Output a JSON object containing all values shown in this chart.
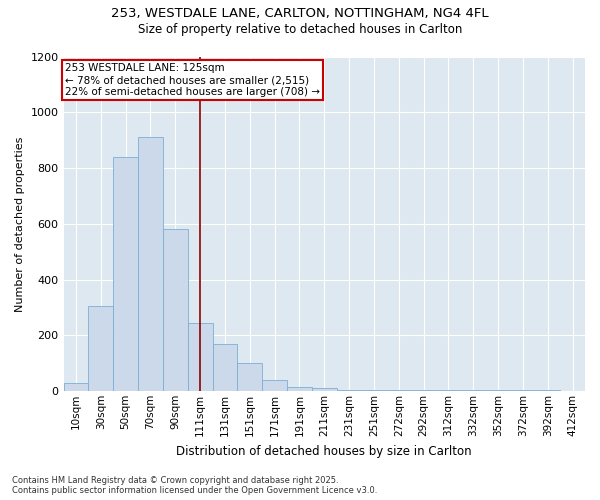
{
  "title_line1": "253, WESTDALE LANE, CARLTON, NOTTINGHAM, NG4 4FL",
  "title_line2": "Size of property relative to detached houses in Carlton",
  "xlabel": "Distribution of detached houses by size in Carlton",
  "ylabel": "Number of detached properties",
  "footer_line1": "Contains HM Land Registry data © Crown copyright and database right 2025.",
  "footer_line2": "Contains public sector information licensed under the Open Government Licence v3.0.",
  "annotation_line1": "253 WESTDALE LANE: 125sqm",
  "annotation_line2": "← 78% of detached houses are smaller (2,515)",
  "annotation_line3": "22% of semi-detached houses are larger (708) →",
  "bin_labels": [
    "10sqm",
    "30sqm",
    "50sqm",
    "70sqm",
    "90sqm",
    "111sqm",
    "131sqm",
    "151sqm",
    "171sqm",
    "191sqm",
    "211sqm",
    "231sqm",
    "251sqm",
    "272sqm",
    "292sqm",
    "312sqm",
    "332sqm",
    "352sqm",
    "372sqm",
    "392sqm",
    "412sqm"
  ],
  "bar_values": [
    30,
    305,
    840,
    910,
    580,
    245,
    170,
    100,
    40,
    15,
    10,
    5,
    5,
    5,
    5,
    5,
    5,
    5,
    5,
    5,
    2
  ],
  "bar_color": "#ccd9ea",
  "bar_edge_color": "#7bafd4",
  "background_color": "#dde8f0",
  "vline_color": "#8b0000",
  "ylim": [
    0,
    1200
  ],
  "yticks": [
    0,
    200,
    400,
    600,
    800,
    1000,
    1200
  ],
  "annotation_box_color": "#cc0000",
  "vline_x_index": 5.0
}
